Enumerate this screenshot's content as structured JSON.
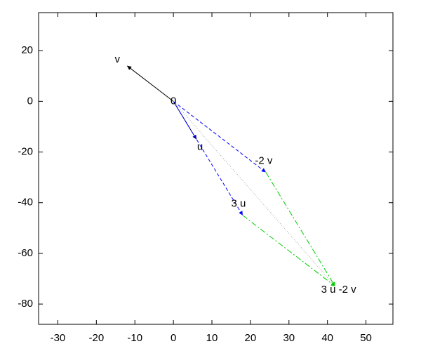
{
  "chart_data": {
    "type": "vector",
    "xlim": [
      -35,
      57
    ],
    "ylim": [
      -88,
      35
    ],
    "xticks": [
      -30,
      -20,
      -10,
      0,
      10,
      20,
      30,
      40,
      50
    ],
    "yticks": [
      -80,
      -60,
      -40,
      -20,
      0,
      20
    ],
    "grid": false,
    "points": [
      {
        "label": "0",
        "x": 0,
        "y": 0
      },
      {
        "label": "v",
        "x": -12,
        "y": 14
      },
      {
        "label": "u",
        "x": 6,
        "y": -15
      },
      {
        "label": "-2 v",
        "x": 24,
        "y": -28
      },
      {
        "label": "3 u",
        "x": 18,
        "y": -45
      },
      {
        "label": "3 u -2 v",
        "x": 42,
        "y": -73
      }
    ],
    "series": [
      {
        "color": "#000000",
        "style": "solid",
        "arrow": true,
        "x": [
          0,
          -12
        ],
        "y": [
          0,
          14
        ]
      },
      {
        "color": "#000080",
        "style": "solid",
        "arrow": true,
        "x": [
          0,
          6
        ],
        "y": [
          0,
          -15
        ]
      },
      {
        "color": "#0000ff",
        "style": "dashed",
        "arrow": true,
        "x": [
          0,
          24
        ],
        "y": [
          0,
          -28
        ]
      },
      {
        "color": "#0000ff",
        "style": "dashed",
        "arrow": true,
        "x": [
          0,
          18
        ],
        "y": [
          0,
          -45
        ]
      },
      {
        "color": "#00cc00",
        "style": "dashdot",
        "arrow": true,
        "x": [
          24,
          42
        ],
        "y": [
          -28,
          -73
        ]
      },
      {
        "color": "#00cc00",
        "style": "dashdot",
        "arrow": true,
        "x": [
          18,
          42
        ],
        "y": [
          -45,
          -73
        ]
      },
      {
        "color": "#aaaaaa",
        "style": "dotted",
        "arrow": false,
        "x": [
          0,
          42
        ],
        "y": [
          0,
          -73
        ]
      }
    ]
  }
}
